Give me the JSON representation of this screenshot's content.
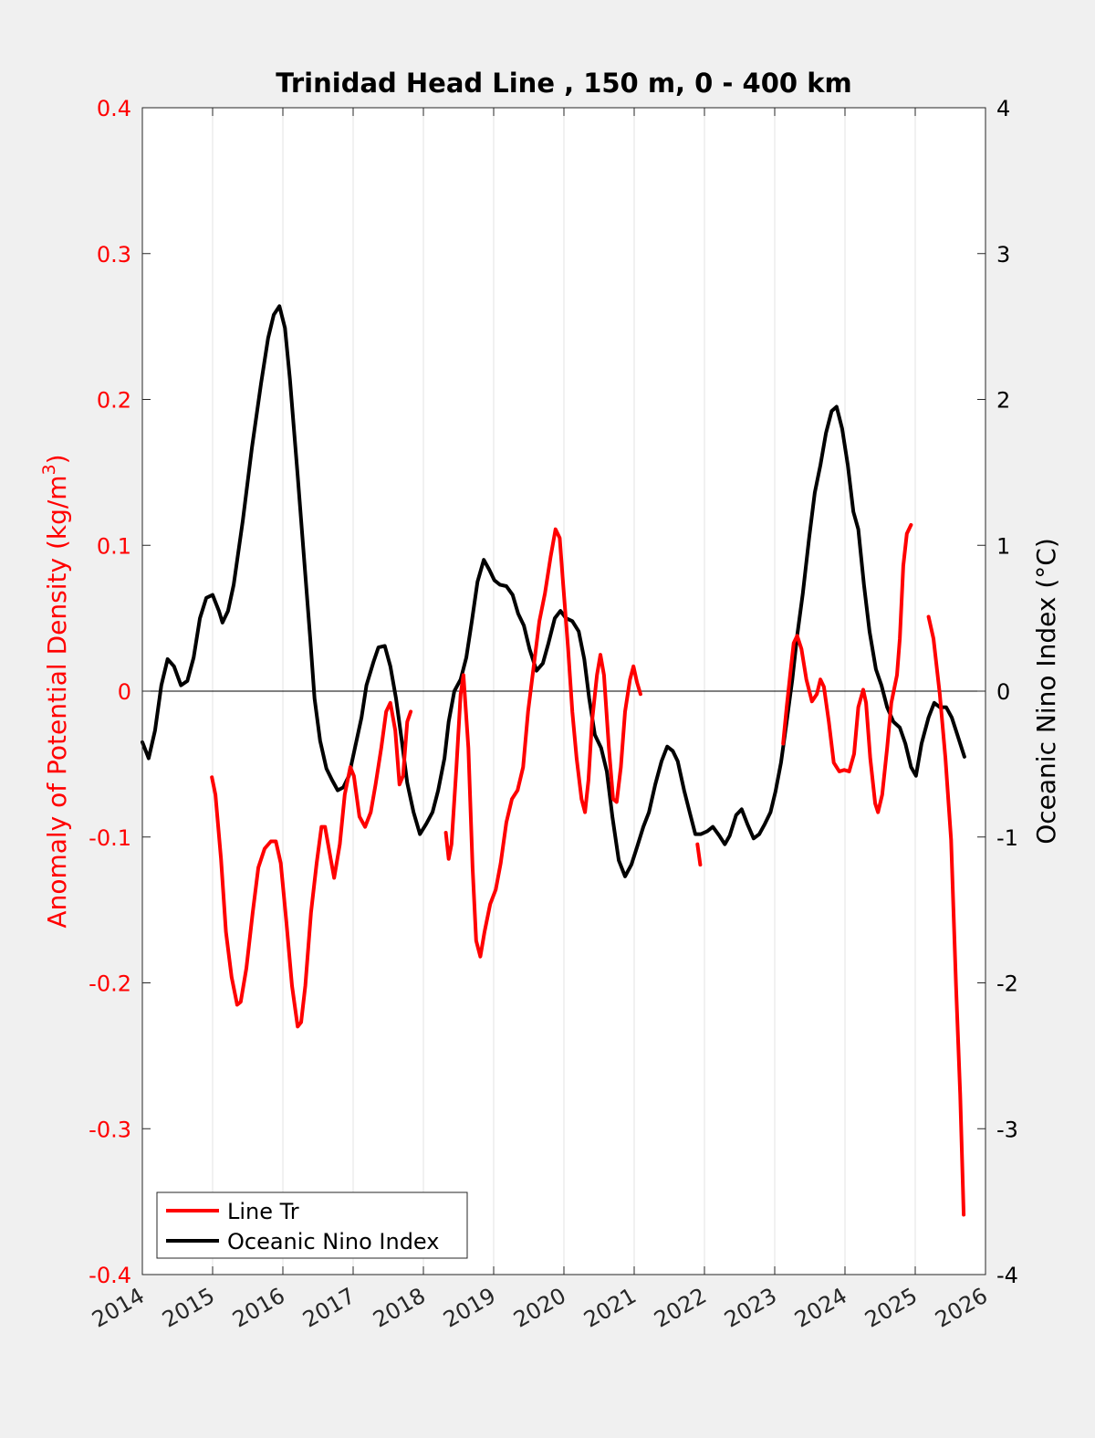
{
  "chart_data": {
    "type": "line",
    "title": "Trinidad Head Line , 150 m, 0 - 400 km",
    "xlabel": "",
    "ylabel_left": {
      "text": "Anomaly of Potential Density (kg/m",
      "sup": "3",
      "close": ")"
    },
    "ylabel_right": "Oceanic Nino Index (°C)",
    "xlim": [
      2014,
      2026
    ],
    "ylim_left": [
      -0.4,
      0.4
    ],
    "ylim_right": [
      -4,
      4
    ],
    "x_ticks": [
      "2014",
      "2015",
      "2016",
      "2017",
      "2018",
      "2019",
      "2020",
      "2021",
      "2022",
      "2023",
      "2024",
      "2025",
      "2026"
    ],
    "y_ticks_left": [
      "0.4",
      "0.3",
      "0.2",
      "0.1",
      "0",
      "-0.1",
      "-0.2",
      "-0.3",
      "-0.4"
    ],
    "y_ticks_right": [
      "4",
      "3",
      "2",
      "1",
      "0",
      "-1",
      "-2",
      "-3",
      "-4"
    ],
    "grid": "vertical at x ticks",
    "legend_position": "bottom-left",
    "colors": {
      "line_tr": "#ff0000",
      "oni": "#000000"
    },
    "series": [
      {
        "name": "Line Tr",
        "axis": "left",
        "segments": [
          {
            "x": [
              2014.99,
              2015.04,
              2015.12,
              2015.19,
              2015.27,
              2015.35,
              2015.4,
              2015.48,
              2015.57,
              2015.65,
              2015.74,
              2015.83,
              2015.9,
              2015.97,
              2016.05,
              2016.13,
              2016.21,
              2016.26,
              2016.32,
              2016.4,
              2016.48,
              2016.55,
              2016.6,
              2016.68,
              2016.73,
              2016.81,
              2016.88,
              2016.96,
              2017.01,
              2017.09,
              2017.17,
              2017.25,
              2017.32,
              2017.4,
              2017.47,
              2017.53,
              2017.6,
              2017.66,
              2017.71,
              2017.77,
              2017.82
            ],
            "y": [
              -0.059,
              -0.071,
              -0.115,
              -0.165,
              -0.196,
              -0.215,
              -0.213,
              -0.19,
              -0.152,
              -0.121,
              -0.108,
              -0.103,
              -0.103,
              -0.118,
              -0.158,
              -0.202,
              -0.23,
              -0.227,
              -0.202,
              -0.152,
              -0.118,
              -0.093,
              -0.093,
              -0.115,
              -0.128,
              -0.105,
              -0.071,
              -0.052,
              -0.058,
              -0.086,
              -0.093,
              -0.083,
              -0.064,
              -0.039,
              -0.014,
              -0.008,
              -0.027,
              -0.064,
              -0.058,
              -0.021,
              -0.014
            ]
          },
          {
            "x": [
              2018.32,
              2018.36,
              2018.4,
              2018.47,
              2018.53,
              2018.57,
              2018.64,
              2018.7,
              2018.75,
              2018.81,
              2018.87,
              2018.95,
              2019.03,
              2019.1,
              2019.18,
              2019.26,
              2019.34,
              2019.42,
              2019.49,
              2019.57,
              2019.65,
              2019.73,
              2019.81,
              2019.88,
              2019.94,
              2019.99,
              2020.06,
              2020.12,
              2020.18,
              2020.25,
              2020.3,
              2020.35,
              2020.4,
              2020.47,
              2020.52,
              2020.57,
              2020.64,
              2020.7,
              2020.75,
              2020.81,
              2020.87,
              2020.94,
              2020.99,
              2021.04,
              2021.09
            ],
            "y": [
              -0.097,
              -0.115,
              -0.105,
              -0.052,
              -0.002,
              0.011,
              -0.039,
              -0.121,
              -0.171,
              -0.182,
              -0.165,
              -0.146,
              -0.136,
              -0.118,
              -0.09,
              -0.074,
              -0.068,
              -0.052,
              -0.014,
              0.017,
              0.048,
              0.067,
              0.092,
              0.111,
              0.105,
              0.073,
              0.029,
              -0.014,
              -0.046,
              -0.074,
              -0.083,
              -0.061,
              -0.021,
              0.011,
              0.025,
              0.011,
              -0.039,
              -0.074,
              -0.076,
              -0.052,
              -0.014,
              0.008,
              0.017,
              0.006,
              -0.002
            ]
          },
          {
            "x": [
              2021.9,
              2021.94
            ],
            "y": [
              -0.105,
              -0.119
            ]
          },
          {
            "x": [
              2023.12,
              2023.17,
              2023.22,
              2023.27,
              2023.32,
              2023.38,
              2023.45,
              2023.53,
              2023.6,
              2023.65,
              2023.7,
              2023.77,
              2023.84,
              2023.92,
              2023.99,
              2024.06,
              2024.13,
              2024.19,
              2024.26,
              2024.3,
              2024.36,
              2024.43,
              2024.47,
              2024.53,
              2024.6,
              2024.66,
              2024.74,
              2024.78,
              2024.83,
              2024.88,
              2024.94
            ],
            "y": [
              -0.036,
              -0.011,
              0.011,
              0.033,
              0.038,
              0.029,
              0.008,
              -0.007,
              -0.002,
              0.008,
              0.003,
              -0.021,
              -0.049,
              -0.055,
              -0.054,
              -0.055,
              -0.043,
              -0.011,
              0.001,
              -0.008,
              -0.046,
              -0.077,
              -0.083,
              -0.071,
              -0.039,
              -0.008,
              0.011,
              0.036,
              0.086,
              0.108,
              0.114
            ]
          },
          {
            "x": [
              2025.19,
              2025.26,
              2025.35,
              2025.43,
              2025.51,
              2025.58,
              2025.64,
              2025.69
            ],
            "y": [
              0.051,
              0.036,
              -0.002,
              -0.046,
              -0.102,
              -0.202,
              -0.277,
              -0.359
            ]
          }
        ]
      },
      {
        "name": "Oceanic Nino Index",
        "axis": "right",
        "segments": [
          {
            "x": [
              2014.0,
              2014.09,
              2014.18,
              2014.27,
              2014.36,
              2014.45,
              2014.55,
              2014.64,
              2014.73,
              2014.82,
              2014.91,
              2015.0,
              2015.09,
              2015.14,
              2015.22,
              2015.3,
              2015.43,
              2015.56,
              2015.69,
              2015.79,
              2015.87,
              2015.95,
              2016.03,
              2016.1,
              2016.21,
              2016.3,
              2016.39,
              2016.45,
              2016.53,
              2016.62,
              2016.7,
              2016.78,
              2016.86,
              2016.94,
              2017.03,
              2017.12,
              2017.19,
              2017.29,
              2017.36,
              2017.45,
              2017.53,
              2017.61,
              2017.69,
              2017.77,
              2017.86,
              2017.95,
              2018.04,
              2018.13,
              2018.21,
              2018.3,
              2018.36,
              2018.44,
              2018.53,
              2018.61,
              2018.69,
              2018.77,
              2018.86,
              2018.94,
              2019.01,
              2019.09,
              2019.18,
              2019.27,
              2019.35,
              2019.43,
              2019.51,
              2019.61,
              2019.7,
              2019.78,
              2019.87,
              2019.95,
              2020.03,
              2020.12,
              2020.21,
              2020.29,
              2020.36,
              2020.44,
              2020.53,
              2020.61,
              2020.69,
              2020.78,
              2020.87,
              2020.96,
              2021.04,
              2021.13,
              2021.21,
              2021.3,
              2021.39,
              2021.47,
              2021.55,
              2021.62,
              2021.71,
              2021.79,
              2021.87,
              2021.95,
              2022.04,
              2022.12,
              2022.21,
              2022.29,
              2022.36,
              2022.45,
              2022.53,
              2022.61,
              2022.7,
              2022.78,
              2022.86,
              2022.94,
              2023.01,
              2023.09,
              2023.17,
              2023.25,
              2023.32,
              2023.4,
              2023.49,
              2023.57,
              2023.65,
              2023.73,
              2023.81,
              2023.88,
              2023.96,
              2024.04,
              2024.12,
              2024.19,
              2024.27,
              2024.35,
              2024.44,
              2024.52,
              2024.6,
              2024.69,
              2024.78,
              2024.86,
              2024.94,
              2025.01,
              2025.09,
              2025.19,
              2025.27,
              2025.35,
              2025.44,
              2025.52,
              2025.6,
              2025.7
            ],
            "y": [
              -0.35,
              -0.46,
              -0.27,
              0.04,
              0.22,
              0.17,
              0.04,
              0.07,
              0.23,
              0.5,
              0.64,
              0.66,
              0.55,
              0.47,
              0.55,
              0.73,
              1.17,
              1.67,
              2.11,
              2.42,
              2.58,
              2.64,
              2.49,
              2.14,
              1.48,
              0.92,
              0.36,
              -0.05,
              -0.34,
              -0.53,
              -0.61,
              -0.68,
              -0.66,
              -0.58,
              -0.38,
              -0.18,
              0.04,
              0.2,
              0.3,
              0.31,
              0.17,
              -0.05,
              -0.33,
              -0.63,
              -0.83,
              -0.98,
              -0.91,
              -0.83,
              -0.68,
              -0.46,
              -0.21,
              0,
              0.08,
              0.23,
              0.48,
              0.75,
              0.9,
              0.83,
              0.76,
              0.73,
              0.72,
              0.66,
              0.53,
              0.45,
              0.29,
              0.14,
              0.19,
              0.33,
              0.5,
              0.55,
              0.5,
              0.48,
              0.41,
              0.22,
              -0.05,
              -0.3,
              -0.39,
              -0.55,
              -0.86,
              -1.16,
              -1.27,
              -1.19,
              -1.07,
              -0.93,
              -0.83,
              -0.64,
              -0.48,
              -0.38,
              -0.41,
              -0.48,
              -0.68,
              -0.83,
              -0.98,
              -0.98,
              -0.96,
              -0.93,
              -0.99,
              -1.05,
              -0.99,
              -0.85,
              -0.81,
              -0.91,
              -1.01,
              -0.98,
              -0.91,
              -0.83,
              -0.69,
              -0.49,
              -0.21,
              0.08,
              0.38,
              0.67,
              1.05,
              1.36,
              1.55,
              1.77,
              1.92,
              1.95,
              1.8,
              1.55,
              1.23,
              1.11,
              0.73,
              0.41,
              0.15,
              0.04,
              -0.11,
              -0.21,
              -0.25,
              -0.36,
              -0.52,
              -0.58,
              -0.36,
              -0.18,
              -0.08,
              -0.11,
              -0.11,
              -0.18,
              -0.3,
              -0.45
            ]
          }
        ]
      }
    ]
  }
}
